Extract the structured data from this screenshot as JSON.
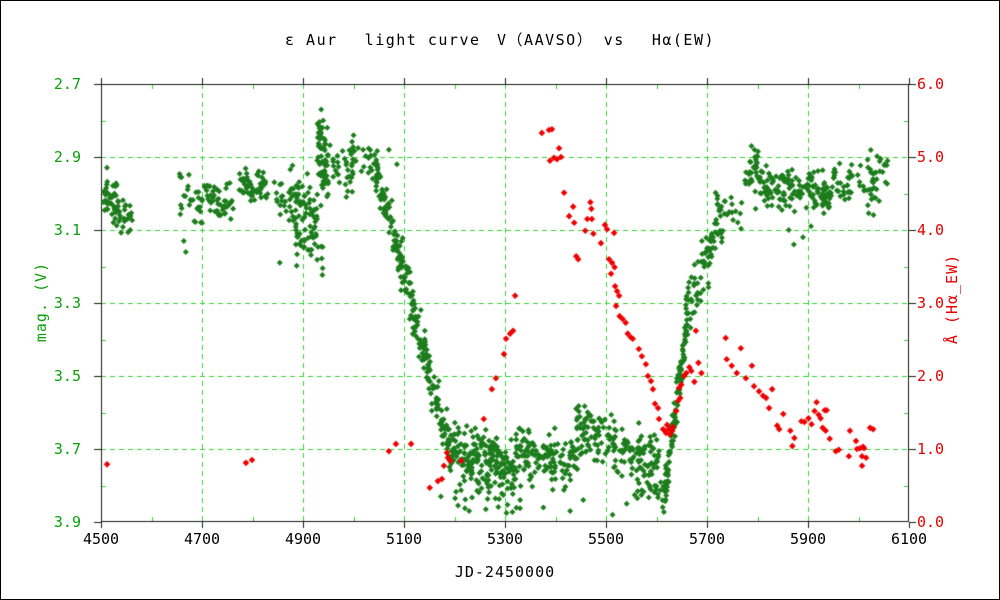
{
  "chart_data": {
    "type": "scatter",
    "title": "ε Aur　 light curve　V（AAVSO） vs　 Hα(EW)",
    "xlabel": "JD-2450000",
    "ylabel_left": "mag. (V)",
    "ylabel_right": "Å (Hα_EW)",
    "xlim": [
      4500,
      6100
    ],
    "ylim_left": [
      2.7,
      3.9
    ],
    "ylim_right": [
      0.0,
      6.0
    ],
    "x_ticks": [
      4500,
      4700,
      4900,
      5100,
      5300,
      5500,
      5700,
      5900,
      6100
    ],
    "y_ticks_left": [
      "2.7",
      "2.9",
      "3.1",
      "3.3",
      "3.5",
      "3.7",
      "3.9"
    ],
    "y_ticks_left_values": [
      2.7,
      2.9,
      3.1,
      3.3,
      3.5,
      3.7,
      3.9
    ],
    "y_ticks_right": [
      "6.0",
      "5.0",
      "4.0",
      "3.0",
      "2.0",
      "1.0",
      "0.0"
    ],
    "y_ticks_right_values": [
      6.0,
      5.0,
      4.0,
      3.0,
      2.0,
      1.0,
      0.0
    ],
    "x_minor_step": 100,
    "y_minor_step": 0.1,
    "grid": true,
    "legend": "none",
    "colors": {
      "green_points": "#1d7d1d",
      "red_points": "#ee0000",
      "grid": "#35d235",
      "green_text": "#0aa00a",
      "red_text": "#e60000",
      "frame": "#1a1a1a",
      "black_text": "#000000"
    },
    "seed": 7,
    "series": [
      {
        "name": "V (AAVSO)",
        "axis": "left",
        "color": "#1d7d1d",
        "marker_radius": 3.0,
        "clusters": [
          [
            4505,
            4532,
            2.99,
            3.02,
            0.028,
            40
          ],
          [
            4528,
            4562,
            3.03,
            3.09,
            0.022,
            28
          ],
          [
            4655,
            4702,
            3.0,
            3.02,
            0.03,
            28
          ],
          [
            4700,
            4762,
            2.99,
            3.04,
            0.025,
            48
          ],
          [
            4773,
            4832,
            2.97,
            3.0,
            0.022,
            55
          ],
          [
            4838,
            4872,
            2.99,
            3.03,
            0.028,
            14
          ],
          [
            4872,
            4928,
            3.02,
            3.08,
            0.045,
            75
          ],
          [
            4882,
            4940,
            3.13,
            3.16,
            0.022,
            26
          ],
          [
            4928,
            4950,
            2.9,
            2.98,
            0.055,
            50
          ],
          [
            4929,
            4946,
            2.82,
            2.86,
            0.025,
            14
          ],
          [
            4950,
            5000,
            2.92,
            2.95,
            0.035,
            30
          ],
          [
            4995,
            5048,
            2.89,
            2.93,
            0.028,
            26
          ],
          [
            5045,
            5120,
            2.94,
            3.33,
            0.03,
            110
          ],
          [
            5115,
            5190,
            3.31,
            3.7,
            0.032,
            105
          ],
          [
            5185,
            5320,
            3.7,
            3.76,
            0.04,
            200
          ],
          [
            5200,
            5335,
            3.82,
            3.85,
            0.018,
            22
          ],
          [
            5320,
            5445,
            3.7,
            3.74,
            0.038,
            130
          ],
          [
            5440,
            5520,
            3.64,
            3.68,
            0.038,
            85
          ],
          [
            5515,
            5605,
            3.7,
            3.74,
            0.038,
            85
          ],
          [
            5555,
            5620,
            3.8,
            3.82,
            0.02,
            20
          ],
          [
            5612,
            5662,
            3.86,
            3.34,
            0.028,
            120
          ],
          [
            5658,
            5732,
            3.34,
            3.05,
            0.04,
            75
          ],
          [
            5715,
            5772,
            3.02,
            3.06,
            0.025,
            22
          ],
          [
            5773,
            5802,
            2.99,
            2.9,
            0.022,
            26
          ],
          [
            5795,
            5952,
            2.98,
            3.0,
            0.028,
            150
          ],
          [
            5950,
            6042,
            2.97,
            3.0,
            0.028,
            55
          ],
          [
            6018,
            6058,
            2.92,
            2.95,
            0.02,
            16
          ]
        ],
        "points": [
          [
            4664,
            3.13
          ],
          [
            4668,
            3.16
          ],
          [
            4854,
            3.19
          ],
          [
            4936,
            2.77
          ],
          [
            4940,
            2.8
          ],
          [
            4948,
            2.82
          ],
          [
            5009,
            2.875
          ],
          [
            5019,
            2.88
          ],
          [
            5030,
            2.877
          ],
          [
            5070,
            2.88
          ],
          [
            5086,
            2.92
          ],
          [
            5173,
            3.83
          ],
          [
            5207,
            3.855
          ],
          [
            5229,
            3.87
          ],
          [
            5262,
            3.865
          ],
          [
            5303,
            3.875
          ],
          [
            5330,
            3.84
          ],
          [
            5376,
            3.86
          ],
          [
            5429,
            3.87
          ],
          [
            5455,
            3.84
          ],
          [
            5513,
            3.88
          ],
          [
            5541,
            3.85
          ],
          [
            5562,
            3.835
          ],
          [
            5690,
            3.13
          ],
          [
            5700,
            3.15
          ],
          [
            5712,
            3.12
          ],
          [
            5788,
            2.87
          ],
          [
            5794,
            2.88
          ],
          [
            5801,
            2.885
          ],
          [
            5862,
            3.1
          ],
          [
            5872,
            3.14
          ],
          [
            5890,
            3.12
          ],
          [
            5906,
            3.09
          ],
          [
            6044,
            2.905
          ],
          [
            6052,
            2.92
          ]
        ]
      },
      {
        "name": "Hα EW",
        "axis": "right",
        "color": "#ee0000",
        "marker_radius": 3.3,
        "clusters": [],
        "points": [
          [
            4512,
            0.79
          ],
          [
            4787,
            0.81
          ],
          [
            4799,
            0.85
          ],
          [
            5070,
            0.97
          ],
          [
            5084,
            1.07
          ],
          [
            5114,
            1.07
          ],
          [
            5151,
            0.47
          ],
          [
            5167,
            0.56
          ],
          [
            5175,
            0.59
          ],
          [
            5179,
            0.77
          ],
          [
            5185,
            0.95
          ],
          [
            5187,
            0.88
          ],
          [
            5191,
            0.84
          ],
          [
            5213,
            0.84
          ],
          [
            5258,
            1.41
          ],
          [
            5274,
            1.82
          ],
          [
            5282,
            1.97
          ],
          [
            5298,
            2.3
          ],
          [
            5302,
            2.51
          ],
          [
            5310,
            2.58
          ],
          [
            5316,
            2.62
          ],
          [
            5320,
            3.1
          ],
          [
            5373,
            5.33
          ],
          [
            5387,
            5.37
          ],
          [
            5393,
            5.38
          ],
          [
            5389,
            4.95
          ],
          [
            5397,
            4.99
          ],
          [
            5403,
            4.97
          ],
          [
            5407,
            5.12
          ],
          [
            5411,
            5.0
          ],
          [
            5417,
            4.51
          ],
          [
            5427,
            4.19
          ],
          [
            5435,
            4.32
          ],
          [
            5437,
            4.1
          ],
          [
            5441,
            3.64
          ],
          [
            5445,
            3.6
          ],
          [
            5459,
            3.99
          ],
          [
            5463,
            4.15
          ],
          [
            5469,
            4.38
          ],
          [
            5471,
            4.29
          ],
          [
            5472,
            4.15
          ],
          [
            5475,
            3.95
          ],
          [
            5490,
            3.82
          ],
          [
            5498,
            4.07
          ],
          [
            5502,
            4.01
          ],
          [
            5516,
            3.96
          ],
          [
            5506,
            3.6
          ],
          [
            5512,
            3.55
          ],
          [
            5517,
            3.49
          ],
          [
            5510,
            3.4
          ],
          [
            5518,
            3.23
          ],
          [
            5522,
            3.16
          ],
          [
            5526,
            3.1
          ],
          [
            5520,
            2.96
          ],
          [
            5527,
            2.82
          ],
          [
            5533,
            2.78
          ],
          [
            5539,
            2.73
          ],
          [
            5543,
            2.58
          ],
          [
            5549,
            2.53
          ],
          [
            5553,
            2.51
          ],
          [
            5565,
            2.37
          ],
          [
            5571,
            2.27
          ],
          [
            5579,
            2.16
          ],
          [
            5583,
            2.0
          ],
          [
            5589,
            1.93
          ],
          [
            5593,
            1.82
          ],
          [
            5597,
            1.62
          ],
          [
            5603,
            1.56
          ],
          [
            5605,
            1.41
          ],
          [
            5613,
            1.27
          ],
          [
            5617,
            1.25
          ],
          [
            5619,
            1.22
          ],
          [
            5621,
            1.33
          ],
          [
            5625,
            1.27
          ],
          [
            5627,
            1.2
          ],
          [
            5631,
            1.25
          ],
          [
            5633,
            1.3
          ],
          [
            5639,
            1.52
          ],
          [
            5643,
            1.66
          ],
          [
            5645,
            1.84
          ],
          [
            5647,
            1.7
          ],
          [
            5649,
            1.88
          ],
          [
            5655,
            2.0
          ],
          [
            5659,
            2.04
          ],
          [
            5665,
            2.12
          ],
          [
            5669,
            2.07
          ],
          [
            5675,
            1.92
          ],
          [
            5678,
            2.62
          ],
          [
            5683,
            2.18
          ],
          [
            5689,
            2.04
          ],
          [
            5737,
            2.52
          ],
          [
            5739,
            2.23
          ],
          [
            5749,
            2.14
          ],
          [
            5759,
            2.04
          ],
          [
            5767,
            2.38
          ],
          [
            5777,
            1.97
          ],
          [
            5789,
            2.14
          ],
          [
            5793,
            1.86
          ],
          [
            5803,
            1.79
          ],
          [
            5811,
            1.73
          ],
          [
            5817,
            1.7
          ],
          [
            5823,
            1.56
          ],
          [
            5829,
            1.82
          ],
          [
            5839,
            1.32
          ],
          [
            5843,
            1.27
          ],
          [
            5851,
            1.48
          ],
          [
            5865,
            1.25
          ],
          [
            5869,
            1.04
          ],
          [
            5873,
            1.15
          ],
          [
            5887,
            1.38
          ],
          [
            5893,
            1.37
          ],
          [
            5901,
            1.42
          ],
          [
            5907,
            1.34
          ],
          [
            5913,
            1.52
          ],
          [
            5917,
            1.64
          ],
          [
            5921,
            1.47
          ],
          [
            5925,
            1.42
          ],
          [
            5929,
            1.29
          ],
          [
            5933,
            1.53
          ],
          [
            5935,
            1.25
          ],
          [
            5937,
            1.53
          ],
          [
            5943,
            1.14
          ],
          [
            5955,
            0.97
          ],
          [
            5961,
            0.99
          ],
          [
            5981,
            0.9
          ],
          [
            5983,
            1.25
          ],
          [
            5995,
            1.11
          ],
          [
            5997,
            1.0
          ],
          [
            6003,
            1.01
          ],
          [
            6007,
            0.9
          ],
          [
            6007,
            0.77
          ],
          [
            6009,
            1.03
          ],
          [
            6011,
            1.01
          ],
          [
            6015,
            0.88
          ],
          [
            6023,
            1.29
          ],
          [
            6029,
            1.27
          ]
        ]
      }
    ]
  }
}
